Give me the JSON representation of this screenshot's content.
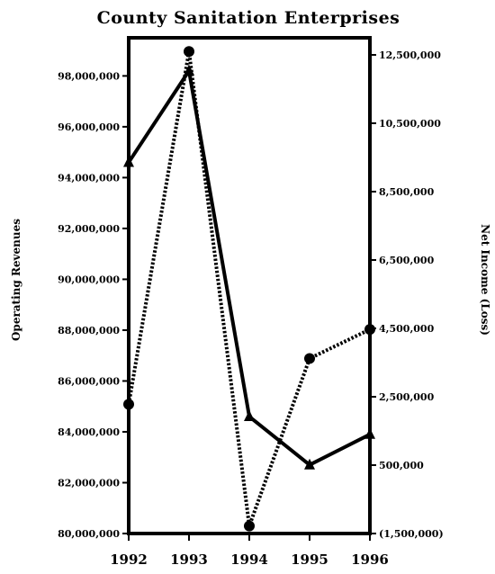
{
  "chart_data": {
    "type": "line",
    "title": "County Sanitation Enterprises",
    "x": [
      "1992",
      "1993",
      "1994",
      "1995",
      "1996"
    ],
    "ylabel_left": "Operating Revenues",
    "ylabel_right": "Net Income (Loss)",
    "ylim_left": [
      80000000,
      99500000
    ],
    "ylim_right": [
      -1500000,
      13000000
    ],
    "yticks_left": [
      "80,000,000",
      "82,000,000",
      "84,000,000",
      "86,000,000",
      "88,000,000",
      "90,000,000",
      "92,000,000",
      "94,000,000",
      "96,000,000",
      "98,000,000"
    ],
    "yticks_left_values": [
      80000000,
      82000000,
      84000000,
      86000000,
      88000000,
      90000000,
      92000000,
      94000000,
      96000000,
      98000000
    ],
    "yticks_right": [
      "(1,500,000)",
      "500,000",
      "2,500,000",
      "4,500,000",
      "6,500,000",
      "8,500,000",
      "10,500,000",
      "12,500,000"
    ],
    "yticks_right_values": [
      -1500000,
      500000,
      2500000,
      4500000,
      6500000,
      8500000,
      10500000,
      12500000
    ],
    "series": [
      {
        "axis": "left",
        "style": "solid",
        "marker": "triangle",
        "values": [
          94600000,
          98200000,
          84600000,
          82700000,
          83900000
        ]
      },
      {
        "axis": "right",
        "style": "dotted",
        "marker": "circle",
        "values": [
          2280000,
          12600000,
          -1280000,
          3620000,
          4470000
        ]
      }
    ],
    "grid": false,
    "legend": "none"
  }
}
